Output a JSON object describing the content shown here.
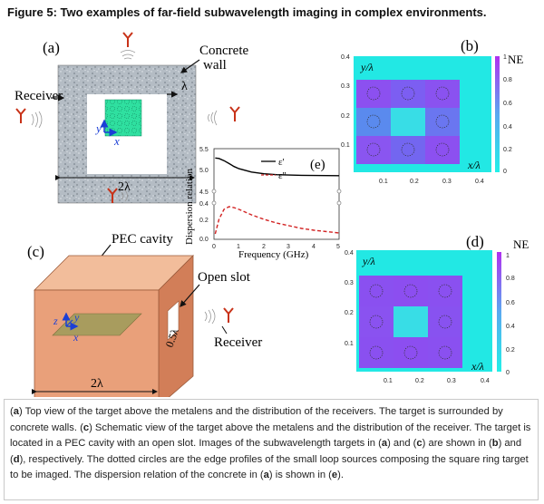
{
  "figure": {
    "title": "Figure 5: Two examples of far-field subwavelength imaging in complex environments.",
    "panel_a": {
      "label": "(a)",
      "concrete_label_1": "Concrete",
      "concrete_label_2": "wall",
      "receiver_label": "Receiver",
      "lambda_label": "λ",
      "width_label": "2λ",
      "axis_x": "x",
      "axis_y": "y"
    },
    "panel_b": {
      "label": "(b)",
      "ne_label": "NE",
      "y_axis_label": "y/λ",
      "x_axis_label": "x/λ",
      "y_ticks": [
        "0.4",
        "0.3",
        "0.2",
        "0.1"
      ],
      "x_ticks": [
        "0.1",
        "0.2",
        "0.3",
        "0.4"
      ],
      "cb_ticks": [
        "1",
        "0.8",
        "0.6",
        "0.4",
        "0.2",
        "0"
      ]
    },
    "panel_c": {
      "label": "(c)",
      "pec_label": "PEC cavity",
      "open_slot_label": "Open slot",
      "receiver_label": "Receiver",
      "width_label": "2λ",
      "slot_label": "0.5λ",
      "axis_x": "x",
      "axis_y": "y",
      "axis_z": "z"
    },
    "panel_d": {
      "label": "(d)",
      "ne_label": "NE",
      "y_axis_label": "y/λ",
      "x_axis_label": "x/λ",
      "y_ticks": [
        "0.4",
        "0.3",
        "0.2",
        "0.1"
      ],
      "x_ticks": [
        "0.1",
        "0.2",
        "0.3",
        "0.4"
      ],
      "cb_ticks": [
        "1",
        "0.8",
        "0.6",
        "0.4",
        "0.2",
        "0"
      ]
    },
    "panel_e": {
      "label": "(e)",
      "ylabel": "Dispersion relation",
      "xlabel": "Frequency (GHz)",
      "y_ticks": [
        "5.5",
        "5.0",
        "4.5",
        "0.4",
        "0.2",
        "0.0"
      ],
      "x_ticks": [
        "0",
        "1",
        "2",
        "3",
        "4",
        "5"
      ],
      "legend_eps1": "ε'",
      "legend_eps2": "ε''"
    }
  },
  "caption": {
    "p1": "(",
    "a1": "a",
    "p2": ") Top view of the target above the metalens and the distribution of the receivers. The target is surrounded by concrete walls. (",
    "c1": "c",
    "p3": ") Schematic view of the target above the metalens and the distribution of the receiver. The target is located in a PEC cavity with an open slot. Images of the subwavelength targets in (",
    "a2": "a",
    "p4": ") and (",
    "c2": "c",
    "p5": ") are shown in (",
    "b1": "b",
    "p6": ") and (",
    "d1": "d",
    "p7": "), respectively. The dotted circles are the edge profiles of the small loop sources composing the square ring target to be imaged. The dispersion relation of the concrete in (",
    "a3": "a",
    "p8": ") is shown in (",
    "e1": "e",
    "p9": ")."
  },
  "colors": {
    "concrete": "#b4bcc4",
    "pec_front": "#e9a07a",
    "pec_top": "#f2bd9b",
    "pec_side": "#d27e58",
    "target_green": "#2fe0a0",
    "plate_olive": "#a89c5e",
    "ring_purple": "#8a55f0",
    "center_cyan": "#38dde6",
    "eps1_line": "#000000",
    "eps2_line": "#d22222",
    "antenna_red": "#c83218"
  },
  "chart_data": {
    "type": "line",
    "title": "",
    "xlabel": "Frequency (GHz)",
    "ylabel": "Dispersion relation",
    "xlim": [
      0,
      5
    ],
    "x": [
      0.05,
      0.2,
      0.4,
      0.6,
      0.8,
      1.0,
      1.5,
      2.0,
      2.5,
      3.0,
      3.5,
      4.0,
      4.5,
      5.0
    ],
    "series": [
      {
        "name": "ε'",
        "values": [
          5.28,
          5.27,
          5.22,
          5.15,
          5.08,
          5.03,
          4.95,
          4.91,
          4.89,
          4.88,
          4.875,
          4.87,
          4.868,
          4.865
        ]
      },
      {
        "name": "ε''",
        "values": [
          0.06,
          0.22,
          0.33,
          0.36,
          0.35,
          0.33,
          0.27,
          0.22,
          0.18,
          0.15,
          0.12,
          0.1,
          0.085,
          0.07
        ]
      }
    ]
  }
}
